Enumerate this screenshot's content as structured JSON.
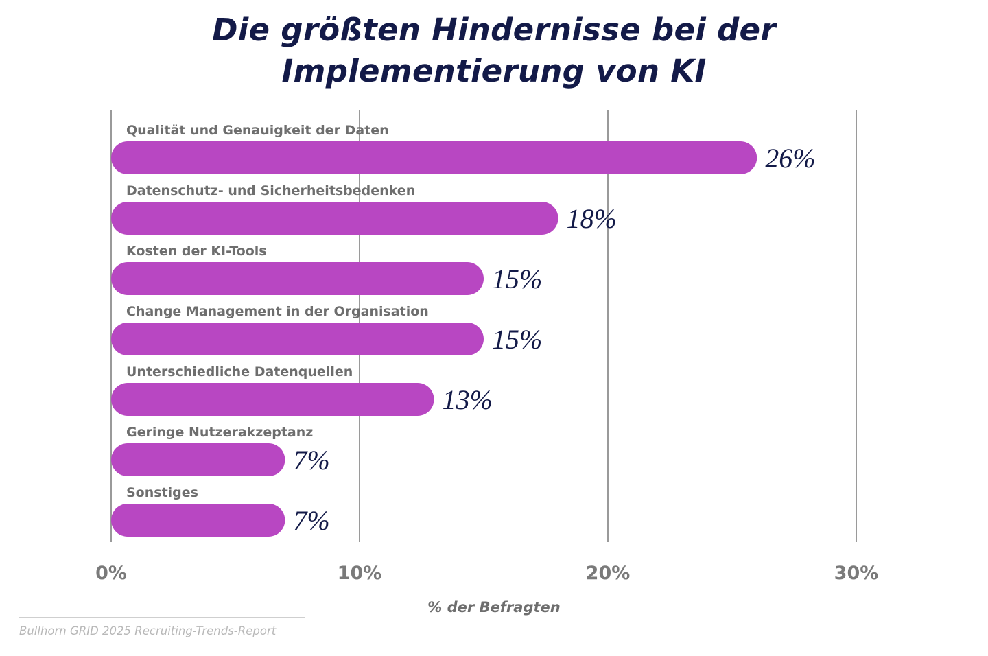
{
  "title_lines": [
    "Die größten Hindernisse bei der",
    "Implementierung von KI"
  ],
  "source": "Bullhorn GRID 2025 Recruiting-Trends-Report",
  "colors": {
    "bar": "#b847c2",
    "title": "#131a48",
    "value_label": "#131a48",
    "category_label": "#6e6e6e",
    "grid": "#9a9a9a",
    "tick_label": "#7a7a7a",
    "source": "#b8b8b8"
  },
  "chart_data": {
    "type": "bar",
    "orientation": "horizontal",
    "title": "Die größten Hindernisse bei der Implementierung von KI",
    "categories": [
      "Qualität und Genauigkeit der Daten",
      "Datenschutz- und Sicherheitsbedenken",
      "Kosten der KI-Tools",
      "Change Management in der Organisation",
      "Unterschiedliche Datenquellen",
      "Geringe Nutzerakzeptanz",
      "Sonstiges"
    ],
    "values": [
      26,
      18,
      15,
      15,
      13,
      7,
      7
    ],
    "value_labels": [
      "26%",
      "18%",
      "15%",
      "15%",
      "13%",
      "7%",
      "7%"
    ],
    "xlabel": "% der Befragten",
    "ylabel": "",
    "xlim": [
      0,
      30
    ],
    "xticks": [
      0,
      10,
      20,
      30
    ],
    "xtick_labels": [
      "0%",
      "10%",
      "20%",
      "30%"
    ],
    "grid": true,
    "legend": "none"
  }
}
